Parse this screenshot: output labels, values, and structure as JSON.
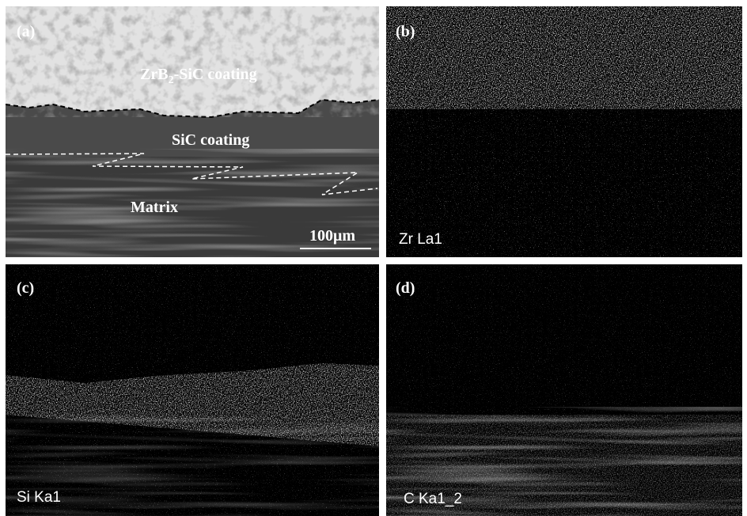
{
  "panels": [
    {
      "tag": "(a)",
      "coating_label": {
        "base": "ZrB",
        "sub": "2",
        "rest": "-SiC coating"
      },
      "sic_label": "SiC coating",
      "matrix_label": "Matrix",
      "scale_bar": "100μm"
    },
    {
      "tag": "(b)",
      "element": "Zr La1"
    },
    {
      "tag": "(c)",
      "element": "Si Ka1"
    },
    {
      "tag": "(d)",
      "element": "C Ka1_2"
    }
  ]
}
